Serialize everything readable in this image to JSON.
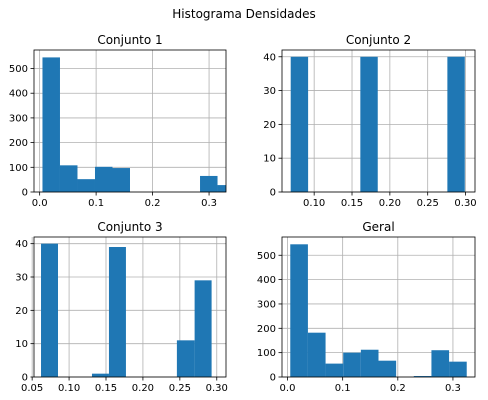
{
  "figure_title": "Histograma Densidades",
  "colors": {
    "bar": "#1f77b4",
    "grid": "#b0b0b0",
    "axis": "#000000"
  },
  "chart_data": [
    {
      "type": "bar",
      "title": "Conjunto 1",
      "grid": true,
      "xlim": [
        -0.01,
        0.33
      ],
      "ylim": [
        0,
        575
      ],
      "xticks": [
        0.0,
        0.1,
        0.2,
        0.3
      ],
      "xtick_labels": [
        "0.0",
        "0.1",
        "0.2",
        "0.3"
      ],
      "yticks": [
        0,
        100,
        200,
        300,
        400,
        500
      ],
      "ytick_labels": [
        "0",
        "100",
        "200",
        "300",
        "400",
        "500"
      ],
      "bins": [
        [
          0.005,
          0.036,
          545
        ],
        [
          0.036,
          0.067,
          108
        ],
        [
          0.067,
          0.098,
          52
        ],
        [
          0.098,
          0.129,
          102
        ],
        [
          0.129,
          0.16,
          97
        ],
        [
          0.16,
          0.191,
          0
        ],
        [
          0.191,
          0.222,
          0
        ],
        [
          0.222,
          0.253,
          0
        ],
        [
          0.253,
          0.284,
          0
        ],
        [
          0.284,
          0.315,
          65
        ],
        [
          0.315,
          0.346,
          28
        ]
      ]
    },
    {
      "type": "bar",
      "title": "Conjunto 2",
      "grid": true,
      "xlim": [
        0.0575,
        0.3125
      ],
      "ylim": [
        0,
        42
      ],
      "xticks": [
        0.1,
        0.15,
        0.2,
        0.25,
        0.3
      ],
      "xtick_labels": [
        "0.10",
        "0.15",
        "0.20",
        "0.25",
        "0.30"
      ],
      "yticks": [
        0,
        10,
        20,
        30,
        40
      ],
      "ytick_labels": [
        "0",
        "10",
        "20",
        "30",
        "40"
      ],
      "bins": [
        [
          0.069,
          0.092,
          40
        ],
        [
          0.092,
          0.115,
          0
        ],
        [
          0.115,
          0.138,
          0
        ],
        [
          0.138,
          0.161,
          0
        ],
        [
          0.161,
          0.184,
          40
        ],
        [
          0.184,
          0.207,
          0
        ],
        [
          0.207,
          0.23,
          0
        ],
        [
          0.23,
          0.253,
          0
        ],
        [
          0.253,
          0.276,
          0
        ],
        [
          0.276,
          0.299,
          40
        ]
      ]
    },
    {
      "type": "bar",
      "title": "Conjunto 3",
      "grid": true,
      "xlim": [
        0.0525,
        0.3125
      ],
      "ylim": [
        0,
        42
      ],
      "xticks": [
        0.05,
        0.1,
        0.15,
        0.2,
        0.25,
        0.3
      ],
      "xtick_labels": [
        "0.05",
        "0.10",
        "0.15",
        "0.20",
        "0.25",
        "0.30"
      ],
      "yticks": [
        0,
        10,
        20,
        30,
        40
      ],
      "ytick_labels": [
        "0",
        "10",
        "20",
        "30",
        "40"
      ],
      "bins": [
        [
          0.062,
          0.085,
          40
        ],
        [
          0.085,
          0.108,
          0
        ],
        [
          0.108,
          0.131,
          0
        ],
        [
          0.131,
          0.154,
          1
        ],
        [
          0.154,
          0.177,
          39
        ],
        [
          0.177,
          0.2,
          0
        ],
        [
          0.2,
          0.223,
          0
        ],
        [
          0.223,
          0.246,
          0
        ],
        [
          0.246,
          0.27,
          11
        ],
        [
          0.27,
          0.293,
          29
        ]
      ]
    },
    {
      "type": "bar",
      "title": "Geral",
      "grid": true,
      "xlim": [
        -0.01,
        0.34
      ],
      "ylim": [
        0,
        575
      ],
      "xticks": [
        0.0,
        0.1,
        0.2,
        0.3
      ],
      "xtick_labels": [
        "0.0",
        "0.1",
        "0.2",
        "0.3"
      ],
      "yticks": [
        0,
        100,
        200,
        300,
        400,
        500
      ],
      "ytick_labels": [
        "0",
        "100",
        "200",
        "300",
        "400",
        "500"
      ],
      "bins": [
        [
          0.005,
          0.037,
          545
        ],
        [
          0.037,
          0.069,
          182
        ],
        [
          0.069,
          0.101,
          55
        ],
        [
          0.101,
          0.133,
          100
        ],
        [
          0.133,
          0.165,
          112
        ],
        [
          0.165,
          0.197,
          67
        ],
        [
          0.197,
          0.229,
          0
        ],
        [
          0.229,
          0.261,
          4
        ],
        [
          0.261,
          0.293,
          110
        ],
        [
          0.293,
          0.325,
          63
        ]
      ]
    }
  ]
}
